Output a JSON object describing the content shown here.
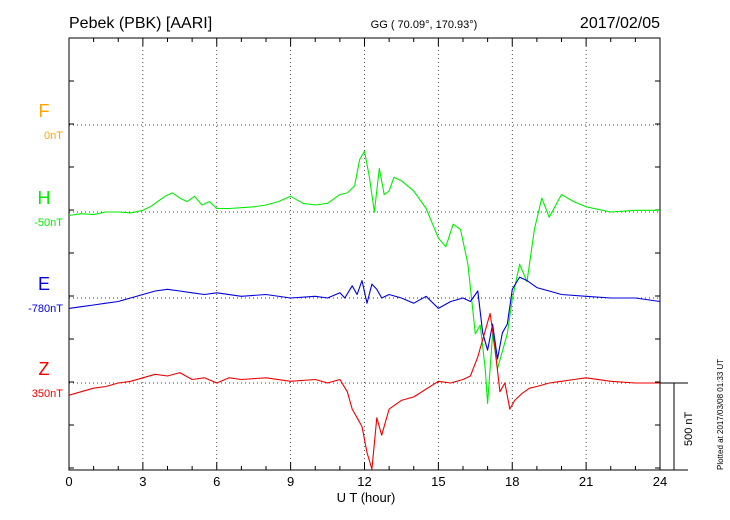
{
  "header": {
    "station": "Pebek (PBK)  [AARI]",
    "coords": "GG ( 70.09°, 170.93°)",
    "date": "2017/02/05"
  },
  "chart_data": {
    "type": "line",
    "xlabel": "U T (hour)",
    "xlim": [
      0,
      24
    ],
    "x_ticks": [
      "0",
      "3",
      "6",
      "9",
      "12",
      "15",
      "18",
      "21",
      "24"
    ],
    "scale_bar": "500 nT",
    "plotted_note": "Plotted at 2017/03/08 01:33 UT",
    "grid": true,
    "series": [
      {
        "name": "F",
        "baseline": "0nT",
        "color": "#ffa500",
        "x": [],
        "values": []
      },
      {
        "name": "H",
        "baseline": "-50nT",
        "color": "#00ee00",
        "x": [
          0,
          0.5,
          1,
          1.5,
          2,
          2.5,
          3,
          3.3,
          3.6,
          3.9,
          4.2,
          4.5,
          4.8,
          5.1,
          5.4,
          5.7,
          6,
          6.5,
          7,
          7.5,
          8,
          8.5,
          9,
          9.5,
          10,
          10.5,
          11,
          11.3,
          11.6,
          11.8,
          12,
          12.2,
          12.4,
          12.6,
          12.8,
          13,
          13.2,
          13.5,
          14,
          14.5,
          15,
          15.3,
          15.6,
          15.9,
          16.2,
          16.5,
          16.7,
          16.9,
          17,
          17.2,
          17.4,
          17.6,
          17.8,
          18,
          18.3,
          18.6,
          18.9,
          19.2,
          19.5,
          20,
          20.5,
          21,
          22,
          23,
          24
        ],
        "values": [
          -20,
          -10,
          -15,
          0,
          0,
          -5,
          10,
          30,
          60,
          90,
          110,
          80,
          60,
          90,
          40,
          60,
          20,
          20,
          25,
          30,
          40,
          60,
          90,
          50,
          40,
          50,
          100,
          110,
          150,
          300,
          350,
          200,
          0,
          250,
          100,
          120,
          200,
          180,
          120,
          20,
          -150,
          -200,
          -70,
          -100,
          -300,
          -700,
          -650,
          -900,
          -1100,
          -700,
          -900,
          -800,
          -700,
          -500,
          -300,
          -400,
          -100,
          80,
          -30,
          100,
          60,
          30,
          0,
          10,
          10
        ]
      },
      {
        "name": "E",
        "baseline": "-780nT",
        "color": "#0000dd",
        "x": [
          0,
          0.5,
          1,
          1.5,
          2,
          2.5,
          3,
          3.5,
          4,
          4.5,
          5,
          5.5,
          6,
          7,
          8,
          9,
          10,
          10.5,
          11,
          11.2,
          11.5,
          11.7,
          11.9,
          12.1,
          12.3,
          12.5,
          12.7,
          13,
          13.5,
          14,
          14.5,
          15,
          15.5,
          16,
          16.3,
          16.6,
          16.8,
          17,
          17.2,
          17.4,
          17.6,
          17.8,
          18,
          18.3,
          18.6,
          19,
          19.5,
          20,
          21,
          22,
          23,
          24
        ],
        "values": [
          -60,
          -50,
          -40,
          -30,
          -20,
          0,
          20,
          40,
          50,
          40,
          30,
          20,
          30,
          10,
          20,
          0,
          10,
          0,
          30,
          0,
          70,
          20,
          100,
          -30,
          80,
          50,
          0,
          20,
          0,
          -30,
          10,
          -60,
          -20,
          0,
          -20,
          40,
          -200,
          -300,
          -150,
          -350,
          -200,
          -150,
          50,
          120,
          100,
          60,
          40,
          20,
          10,
          0,
          0,
          -20
        ]
      },
      {
        "name": "Z",
        "baseline": "350nT",
        "color": "#ee0000",
        "x": [
          0,
          0.5,
          1,
          1.5,
          2,
          2.5,
          3,
          3.5,
          4,
          4.5,
          5,
          5.5,
          6,
          6.5,
          7,
          8,
          9,
          10,
          10.5,
          11,
          11.3,
          11.5,
          11.7,
          11.9,
          12.1,
          12.3,
          12.5,
          12.7,
          13,
          13.5,
          14,
          15,
          15.5,
          16,
          16.3,
          16.6,
          16.9,
          17.1,
          17.3,
          17.5,
          17.7,
          17.9,
          18.1,
          18.4,
          18.7,
          19,
          19.5,
          20,
          20.5,
          21,
          22,
          23,
          24
        ],
        "values": [
          -70,
          -50,
          -30,
          -20,
          0,
          10,
          30,
          50,
          40,
          60,
          20,
          30,
          0,
          30,
          20,
          30,
          10,
          20,
          0,
          20,
          -50,
          -150,
          -200,
          -250,
          -400,
          -500,
          -200,
          -300,
          -150,
          -100,
          -80,
          10,
          0,
          20,
          40,
          150,
          300,
          400,
          200,
          -50,
          0,
          -150,
          -100,
          -60,
          -30,
          -20,
          0,
          10,
          20,
          30,
          10,
          0,
          0
        ]
      }
    ]
  }
}
